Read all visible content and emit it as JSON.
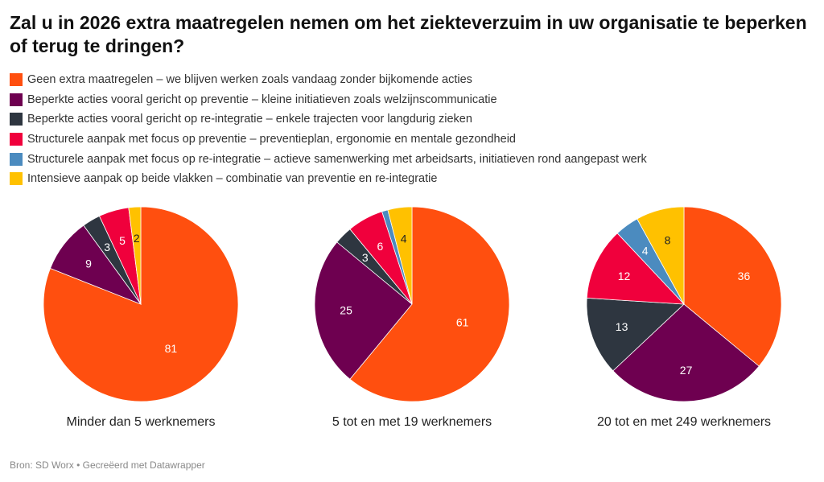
{
  "title": "Zal u in 2026 extra maatregelen nemen om het ziekteverzuim in uw organisatie te beperken of terug te dringen?",
  "source": "Bron: SD Worx • Gecreëerd met Datawrapper",
  "chart_data": {
    "type": "pie",
    "title": "Zal u in 2026 extra maatregelen nemen om het ziekteverzuim in uw organisatie te beperken of terug te dringen?",
    "legend_position": "top",
    "categories": [
      {
        "name": "Geen extra maatregelen – we blijven werken zoals vandaag zonder bijkomende acties",
        "color": "#ff4f0f",
        "label_color": "#ffffff"
      },
      {
        "name": "Beperkte acties vooral gericht op preventie – kleine initiatieven zoals welzijnscommunicatie",
        "color": "#6e0050",
        "label_color": "#ffffff"
      },
      {
        "name": "Beperkte acties vooral gericht op re-integratie – enkele trajecten voor langdurig zieken",
        "color": "#2e3640",
        "label_color": "#ffffff"
      },
      {
        "name": "Structurele aanpak met focus op preventie – preventieplan, ergonomie en mentale gezondheid",
        "color": "#f0003c",
        "label_color": "#ffffff"
      },
      {
        "name": "Structurele aanpak met focus op re-integratie – actieve samenwerking met arbeidsarts, initiatieven rond aangepast werk",
        "color": "#4b8bbf",
        "label_color": "#ffffff"
      },
      {
        "name": "Intensieve aanpak op beide vlakken – combinatie van preventie en re-integratie",
        "color": "#ffc100",
        "label_color": "#222222"
      }
    ],
    "series": [
      {
        "name": "Minder dan 5 werknemers",
        "values": [
          81,
          9,
          3,
          5,
          0,
          2
        ]
      },
      {
        "name": "5 tot en met 19 werknemers",
        "values": [
          61,
          25,
          3,
          6,
          1,
          4
        ]
      },
      {
        "name": "20 tot en met 249 werknemers",
        "values": [
          36,
          27,
          13,
          12,
          4,
          8
        ]
      }
    ],
    "label_min": 2
  }
}
